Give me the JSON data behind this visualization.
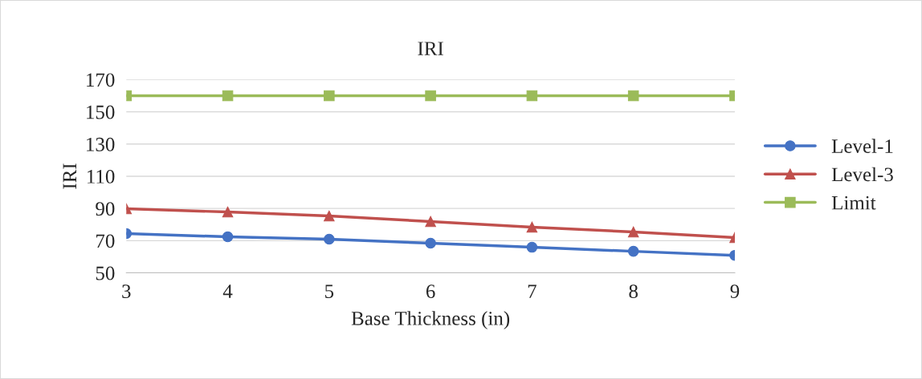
{
  "chart_data": {
    "type": "line",
    "title": "IRI",
    "xlabel": "Base Thickness (in)",
    "ylabel": "IRI",
    "x": [
      3,
      4,
      5,
      6,
      7,
      8,
      9
    ],
    "xlim": [
      3,
      9
    ],
    "xticks": [
      3,
      4,
      5,
      6,
      7,
      8,
      9
    ],
    "ylim": [
      50,
      170
    ],
    "yticks": [
      50,
      70,
      90,
      110,
      130,
      150,
      170
    ],
    "grid": "y",
    "legend": "right",
    "series": [
      {
        "name": "Level-1",
        "color": "#4472c4",
        "marker": "circle",
        "values": [
          74.4,
          72.4,
          70.9,
          68.4,
          65.9,
          63.4,
          60.9
        ]
      },
      {
        "name": "Level-3",
        "color": "#c0504d",
        "marker": "triangle",
        "values": [
          89.8,
          87.8,
          85.3,
          81.9,
          78.4,
          75.4,
          71.9
        ]
      },
      {
        "name": "Limit",
        "color": "#9bbb59",
        "marker": "square",
        "values": [
          160,
          160,
          160,
          160,
          160,
          160,
          160
        ]
      }
    ]
  }
}
